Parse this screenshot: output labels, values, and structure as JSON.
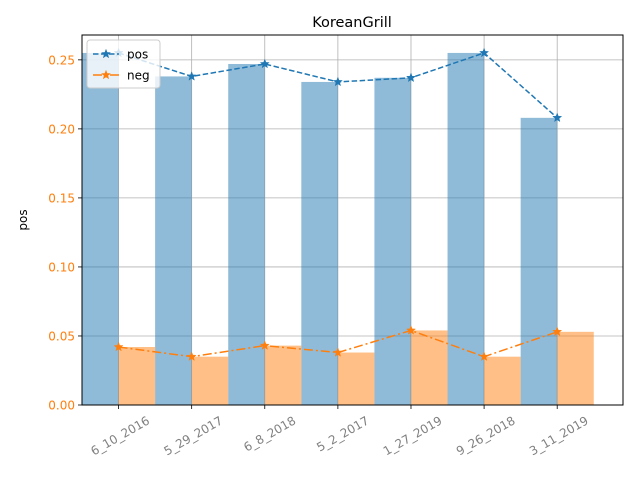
{
  "chart_data": {
    "type": "bar",
    "title": "KoreanGrill",
    "xlabel": "",
    "ylabel": "pos",
    "categories": [
      "6_10_2016",
      "5_29_2017",
      "6_8_2018",
      "5_2_2017",
      "1_27_2019",
      "9_26_2018",
      "3_11_2019"
    ],
    "ylim": [
      0,
      0.268
    ],
    "yticks": [
      "0.00",
      "0.05",
      "0.10",
      "0.15",
      "0.20",
      "0.25"
    ],
    "grid": true,
    "legend_position": "top-left",
    "series": [
      {
        "name": "pos",
        "values": [
          0.255,
          0.238,
          0.247,
          0.234,
          0.237,
          0.255,
          0.208
        ],
        "color": "#1f77b4",
        "bar_color": "#8ab8da",
        "line_style": "dashed",
        "marker": "star"
      },
      {
        "name": "neg",
        "values": [
          0.042,
          0.035,
          0.043,
          0.038,
          0.054,
          0.035,
          0.053
        ],
        "color": "#ff7f0e",
        "bar_color": "#ffbf87",
        "line_style": "dashdot",
        "marker": "star"
      }
    ],
    "ytick_color": "#ff7f0e",
    "xtick_color": "#808080"
  }
}
